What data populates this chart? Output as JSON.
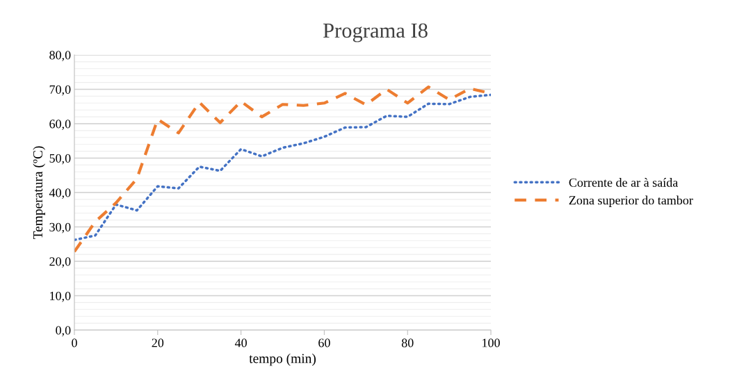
{
  "chart_data": {
    "type": "line",
    "title": "Programa I8",
    "xlabel": "tempo (min)",
    "ylabel": "Temperatura (ºC)",
    "x": [
      0,
      5,
      10,
      15,
      20,
      25,
      30,
      35,
      40,
      45,
      50,
      55,
      60,
      65,
      70,
      75,
      80,
      85,
      90,
      95,
      100
    ],
    "series": [
      {
        "name": "Corrente de ar à saída",
        "color": "#4472c4",
        "line_style": "dotted",
        "values": [
          26.2,
          27.5,
          36.5,
          34.8,
          41.8,
          41.2,
          47.5,
          46.3,
          52.6,
          50.5,
          53.0,
          54.3,
          56.2,
          58.9,
          59.0,
          62.3,
          62.0,
          65.8,
          65.7,
          67.8,
          68.4
        ]
      },
      {
        "name": "Zona superior do tambor",
        "color": "#ed7d31",
        "line_style": "dashed",
        "values": [
          22.8,
          31.5,
          37.0,
          44.0,
          61.3,
          57.3,
          66.2,
          60.3,
          66.5,
          62.0,
          65.6,
          65.3,
          66.0,
          68.8,
          65.5,
          70.0,
          66.0,
          70.7,
          67.0,
          70.2,
          68.8
        ]
      }
    ],
    "xlim": [
      0,
      100
    ],
    "xticks": [
      0,
      20,
      40,
      60,
      80,
      100
    ],
    "ylim": [
      0,
      80
    ],
    "yticks": [
      {
        "value": 0,
        "label": "0,0"
      },
      {
        "value": 10,
        "label": "10,0"
      },
      {
        "value": 20,
        "label": "20,0"
      },
      {
        "value": 30,
        "label": "30,0"
      },
      {
        "value": 40,
        "label": "40,0"
      },
      {
        "value": 50,
        "label": "50,0"
      },
      {
        "value": 60,
        "label": "60,0"
      },
      {
        "value": 70,
        "label": "70,0"
      },
      {
        "value": 80,
        "label": "80,0"
      }
    ],
    "grid": "y",
    "legend": "right"
  }
}
